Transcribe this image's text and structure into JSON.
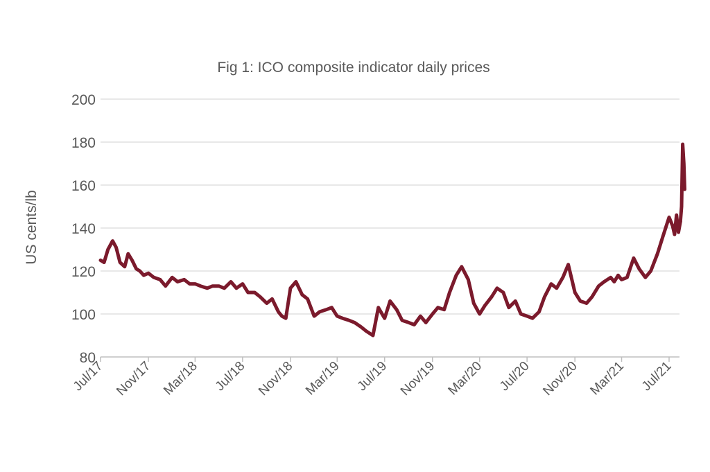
{
  "chart_data": {
    "type": "line",
    "title": "Fig 1: ICO composite indicator daily prices",
    "ylabel": "US cents/lb",
    "xlabel": "",
    "ylim": [
      80,
      200
    ],
    "yticks": [
      80,
      100,
      120,
      140,
      160,
      180,
      200
    ],
    "xticks": [
      "Jul/17",
      "Nov/17",
      "Mar/18",
      "Jul/18",
      "Nov/18",
      "Mar/19",
      "Jul/19",
      "Nov/19",
      "Mar/20",
      "Jul/20",
      "Nov/20",
      "Mar/21",
      "Jul/21"
    ],
    "grid": "horizontal",
    "legend": "none",
    "color": "#7b1a2c",
    "series": [
      {
        "x": [
          "2017-07-01",
          "2017-07-10",
          "2017-07-20",
          "2017-08-01",
          "2017-08-10",
          "2017-08-20",
          "2017-09-01",
          "2017-09-10",
          "2017-09-20",
          "2017-10-01",
          "2017-10-10",
          "2017-10-20",
          "2017-11-01",
          "2017-11-15",
          "2017-12-01",
          "2017-12-15",
          "2018-01-01",
          "2018-01-15",
          "2018-02-01",
          "2018-02-15",
          "2018-03-01",
          "2018-03-15",
          "2018-04-01",
          "2018-04-15",
          "2018-05-01",
          "2018-05-15",
          "2018-06-01",
          "2018-06-15",
          "2018-07-01",
          "2018-07-15",
          "2018-08-01",
          "2018-08-15",
          "2018-09-01",
          "2018-09-15",
          "2018-10-01",
          "2018-10-10",
          "2018-10-20",
          "2018-11-01",
          "2018-11-15",
          "2018-12-01",
          "2018-12-15",
          "2019-01-01",
          "2019-01-15",
          "2019-02-01",
          "2019-02-15",
          "2019-03-01",
          "2019-03-15",
          "2019-04-01",
          "2019-04-15",
          "2019-05-01",
          "2019-05-15",
          "2019-06-01",
          "2019-06-15",
          "2019-07-01",
          "2019-07-15",
          "2019-08-01",
          "2019-08-15",
          "2019-09-01",
          "2019-09-15",
          "2019-10-01",
          "2019-10-15",
          "2019-11-01",
          "2019-11-15",
          "2019-12-01",
          "2019-12-15",
          "2020-01-01",
          "2020-01-15",
          "2020-02-01",
          "2020-02-15",
          "2020-03-01",
          "2020-03-15",
          "2020-04-01",
          "2020-04-15",
          "2020-05-01",
          "2020-05-15",
          "2020-06-01",
          "2020-06-15",
          "2020-07-01",
          "2020-07-15",
          "2020-08-01",
          "2020-08-15",
          "2020-09-01",
          "2020-09-15",
          "2020-10-01",
          "2020-10-15",
          "2020-11-01",
          "2020-11-15",
          "2020-12-01",
          "2020-12-15",
          "2021-01-01",
          "2021-01-15",
          "2021-02-01",
          "2021-02-10",
          "2021-02-20",
          "2021-03-01",
          "2021-03-15",
          "2021-04-01",
          "2021-04-15",
          "2021-05-01",
          "2021-05-15",
          "2021-06-01",
          "2021-06-15",
          "2021-07-01",
          "2021-07-10",
          "2021-07-15",
          "2021-07-20",
          "2021-07-25",
          "2021-07-30"
        ],
        "values": [
          125,
          124,
          130,
          134,
          131,
          124,
          122,
          128,
          125,
          121,
          120,
          118,
          119,
          117,
          116,
          113,
          117,
          115,
          116,
          114,
          114,
          113,
          112,
          113,
          113,
          112,
          115,
          112,
          114,
          110,
          110,
          108,
          105,
          107,
          101,
          99,
          98,
          112,
          115,
          109,
          107,
          99,
          101,
          102,
          103,
          99,
          98,
          97,
          96,
          94,
          92,
          90,
          103,
          98,
          106,
          102,
          97,
          96,
          95,
          99,
          96,
          100,
          103,
          102,
          110,
          118,
          122,
          116,
          105,
          100,
          104,
          108,
          112,
          110,
          103,
          106,
          100,
          99,
          98,
          101,
          108,
          114,
          112,
          117,
          123,
          110,
          106,
          105,
          108,
          113,
          115,
          117,
          115,
          118,
          116,
          117,
          126,
          121,
          117,
          120,
          128,
          136,
          145,
          141,
          137,
          146,
          138,
          143
        ]
      },
      {
        "x": [
          "2021-07-30",
          "2021-08-02",
          "2021-08-05",
          "2021-08-08",
          "2021-08-10"
        ],
        "values": [
          143,
          150,
          179,
          170,
          158
        ]
      }
    ]
  }
}
